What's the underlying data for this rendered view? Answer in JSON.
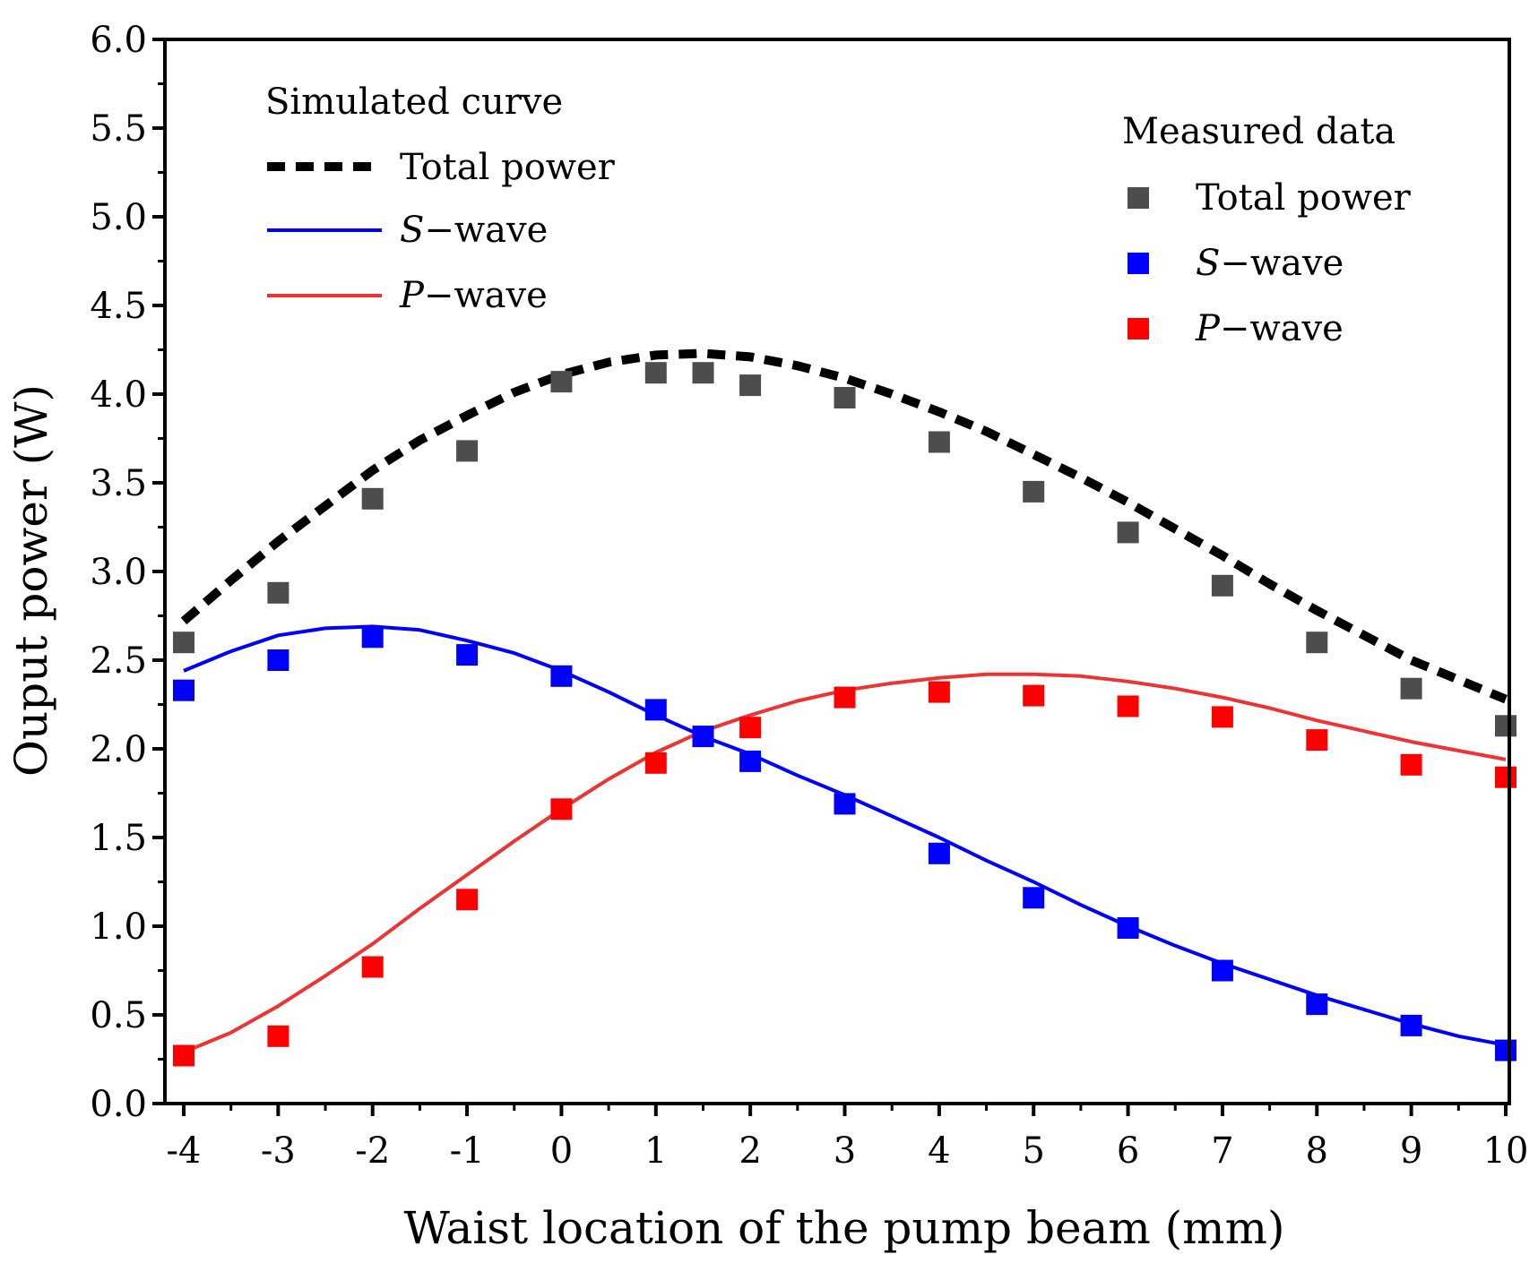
{
  "chart_data": {
    "type": "scatter",
    "xlabel": "Waist location of the pump beam (mm)",
    "ylabel": "Ouput power (W)",
    "xlim": [
      -4,
      10
    ],
    "ylim": [
      0.0,
      6.0
    ],
    "x_ticks": [
      -4,
      -3,
      -2,
      -1,
      0,
      1,
      2,
      3,
      4,
      5,
      6,
      7,
      8,
      9,
      10
    ],
    "x_tick_labels": [
      "-4",
      "-3",
      "-2",
      "-1",
      "0",
      "1",
      "2",
      "3",
      "4",
      "5",
      "6",
      "7",
      "8",
      "9",
      "10"
    ],
    "y_ticks": [
      0.0,
      0.5,
      1.0,
      1.5,
      2.0,
      2.5,
      3.0,
      3.5,
      4.0,
      4.5,
      5.0,
      5.5,
      6.0
    ],
    "y_tick_labels": [
      "0.0",
      "0.5",
      "1.0",
      "1.5",
      "2.0",
      "2.5",
      "3.0",
      "3.5",
      "4.0",
      "4.5",
      "5.0",
      "5.5",
      "6.0"
    ],
    "legend_simulated": {
      "title": "Simulated curve",
      "entries": [
        {
          "prefix": "",
          "text": "Total power",
          "color": "#000000",
          "style": "dashed"
        },
        {
          "prefix": "S",
          "text": "−wave",
          "color": "#0000ff",
          "style": "solid"
        },
        {
          "prefix": "P",
          "text": "−wave",
          "color": "#ee3333",
          "style": "solid"
        }
      ]
    },
    "legend_measured": {
      "title": "Measured data",
      "entries": [
        {
          "prefix": "",
          "text": "Total power",
          "color": "#4d4d4d"
        },
        {
          "prefix": "S",
          "text": "−wave",
          "color": "#0000ff"
        },
        {
          "prefix": "P",
          "text": "−wave",
          "color": "#ff0000"
        }
      ]
    },
    "simulated": [
      {
        "name": "Total power",
        "color": "#000000",
        "style": "dashed",
        "x": [
          -4,
          -3.5,
          -3,
          -2.5,
          -2,
          -1.5,
          -1,
          -0.5,
          0,
          0.5,
          1,
          1.5,
          2,
          2.5,
          3,
          3.5,
          4,
          4.5,
          5,
          5.5,
          6,
          6.5,
          7,
          7.5,
          8,
          8.5,
          9,
          9.5,
          10
        ],
        "y": [
          2.72,
          2.95,
          3.17,
          3.37,
          3.57,
          3.74,
          3.88,
          4.01,
          4.11,
          4.18,
          4.22,
          4.23,
          4.21,
          4.16,
          4.09,
          4.0,
          3.9,
          3.79,
          3.66,
          3.53,
          3.39,
          3.24,
          3.09,
          2.93,
          2.78,
          2.64,
          2.5,
          2.39,
          2.28
        ]
      },
      {
        "name": "S−wave",
        "color": "#0000ff",
        "style": "solid",
        "x": [
          -4,
          -3.5,
          -3,
          -2.5,
          -2,
          -1.5,
          -1,
          -0.5,
          0,
          0.5,
          1,
          1.5,
          2,
          2.5,
          3,
          3.5,
          4,
          4.5,
          5,
          5.5,
          6,
          6.5,
          7,
          7.5,
          8,
          8.5,
          9,
          9.5,
          10
        ],
        "y": [
          2.44,
          2.55,
          2.64,
          2.68,
          2.69,
          2.67,
          2.61,
          2.54,
          2.44,
          2.32,
          2.19,
          2.07,
          1.97,
          1.85,
          1.74,
          1.62,
          1.5,
          1.37,
          1.25,
          1.12,
          1.0,
          0.89,
          0.79,
          0.7,
          0.61,
          0.53,
          0.45,
          0.38,
          0.33
        ]
      },
      {
        "name": "P−wave",
        "color": "#ee3333",
        "style": "solid",
        "x": [
          -4,
          -3.5,
          -3,
          -2.5,
          -2,
          -1.5,
          -1,
          -0.5,
          0,
          0.5,
          1,
          1.5,
          2,
          2.5,
          3,
          3.5,
          4,
          4.5,
          5,
          5.5,
          6,
          6.5,
          7,
          7.5,
          8,
          8.5,
          9,
          9.5,
          10
        ],
        "y": [
          0.29,
          0.4,
          0.55,
          0.72,
          0.9,
          1.1,
          1.29,
          1.48,
          1.66,
          1.83,
          1.98,
          2.1,
          2.19,
          2.27,
          2.33,
          2.37,
          2.4,
          2.42,
          2.42,
          2.41,
          2.38,
          2.34,
          2.29,
          2.23,
          2.16,
          2.1,
          2.04,
          1.99,
          1.94
        ]
      }
    ],
    "measured": [
      {
        "name": "Total power",
        "color": "#4d4d4d",
        "x": [
          -4,
          -3,
          -2,
          -1,
          0,
          1,
          1.5,
          2,
          3,
          4,
          5,
          6,
          7,
          8,
          9,
          10
        ],
        "y": [
          2.6,
          2.88,
          3.41,
          3.68,
          4.07,
          4.12,
          4.12,
          4.05,
          3.98,
          3.73,
          3.45,
          3.22,
          2.92,
          2.6,
          2.34,
          2.13
        ]
      },
      {
        "name": "S−wave",
        "color": "#0000ff",
        "x": [
          -4,
          -3,
          -2,
          -1,
          0,
          1,
          1.5,
          2,
          3,
          4,
          5,
          6,
          7,
          8,
          9,
          10
        ],
        "y": [
          2.33,
          2.5,
          2.63,
          2.53,
          2.41,
          2.22,
          2.07,
          1.93,
          1.69,
          1.41,
          1.16,
          0.99,
          0.75,
          0.56,
          0.44,
          0.3
        ]
      },
      {
        "name": "P−wave",
        "color": "#ff0000",
        "x": [
          -4,
          -3,
          -2,
          -1,
          0,
          1,
          2,
          3,
          4,
          5,
          6,
          7,
          8,
          9,
          10
        ],
        "y": [
          0.27,
          0.38,
          0.77,
          1.15,
          1.66,
          1.92,
          2.12,
          2.29,
          2.32,
          2.3,
          2.24,
          2.18,
          2.05,
          1.91,
          1.84
        ]
      }
    ]
  }
}
